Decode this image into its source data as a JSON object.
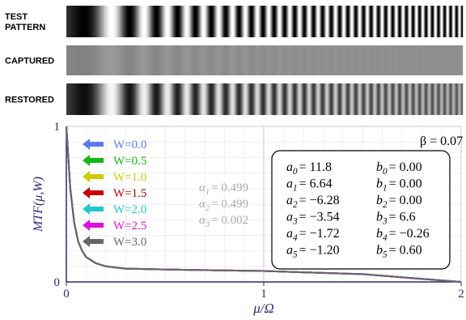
{
  "strips": [
    {
      "label": [
        "TEST",
        "PATTERN"
      ]
    },
    {
      "label": [
        "CAPTURED"
      ]
    },
    {
      "label": [
        "RESTORED"
      ]
    }
  ],
  "chart_data": {
    "type": "line",
    "ylabel": "MTF(μ,W)",
    "xlabel": "μ/Ω",
    "x": [
      0,
      0.02,
      0.04,
      0.06,
      0.08,
      0.1,
      0.15,
      0.2,
      0.3,
      0.5,
      0.75,
      1,
      1.25,
      1.5,
      1.75,
      1.9,
      2
    ],
    "series": [
      {
        "name": "W=0.0",
        "color": "#5b7cf0",
        "values": [
          1,
          0.6,
          0.38,
          0.26,
          0.2,
          0.16,
          0.12,
          0.1,
          0.085,
          0.08,
          0.075,
          0.07,
          0.06,
          0.05,
          0.025,
          0.01,
          0
        ]
      },
      {
        "name": "W=0.5",
        "color": "#14b814",
        "values": [
          1,
          0.6,
          0.38,
          0.26,
          0.2,
          0.16,
          0.12,
          0.1,
          0.085,
          0.08,
          0.075,
          0.07,
          0.06,
          0.05,
          0.025,
          0.01,
          0
        ]
      },
      {
        "name": "W=1.0",
        "color": "#cccc00",
        "values": [
          1,
          0.6,
          0.38,
          0.26,
          0.2,
          0.16,
          0.12,
          0.1,
          0.085,
          0.08,
          0.075,
          0.07,
          0.06,
          0.05,
          0.025,
          0.01,
          0
        ]
      },
      {
        "name": "W=1.5",
        "color": "#c80000",
        "values": [
          1,
          0.6,
          0.38,
          0.26,
          0.2,
          0.16,
          0.12,
          0.1,
          0.085,
          0.08,
          0.075,
          0.07,
          0.06,
          0.05,
          0.025,
          0.01,
          0
        ]
      },
      {
        "name": "W=2.0",
        "color": "#22c8c8",
        "values": [
          1,
          0.6,
          0.38,
          0.26,
          0.2,
          0.16,
          0.12,
          0.1,
          0.085,
          0.08,
          0.075,
          0.07,
          0.06,
          0.05,
          0.025,
          0.01,
          0
        ]
      },
      {
        "name": "W=2.5",
        "color": "#dd11dd",
        "values": [
          1,
          0.6,
          0.38,
          0.26,
          0.2,
          0.16,
          0.12,
          0.1,
          0.085,
          0.08,
          0.075,
          0.07,
          0.06,
          0.05,
          0.025,
          0.01,
          0
        ]
      },
      {
        "name": "W=3.0",
        "color": "#666666",
        "values": [
          1,
          0.6,
          0.38,
          0.26,
          0.2,
          0.16,
          0.12,
          0.1,
          0.085,
          0.08,
          0.075,
          0.07,
          0.06,
          0.05,
          0.025,
          0.01,
          0
        ]
      }
    ],
    "xlim": [
      0,
      2
    ],
    "xticks": [
      0,
      1,
      2
    ],
    "ylim": [
      0,
      1
    ],
    "yticks": [
      0,
      1
    ],
    "grid": true,
    "alphas": [
      {
        "symbol": "α",
        "index": "1",
        "value": "= 0.499"
      },
      {
        "symbol": "α",
        "index": "2",
        "value": "= 0.499"
      },
      {
        "symbol": "α",
        "index": "3",
        "value": "= 0.002"
      }
    ],
    "beta": "β = 0.07",
    "coefficients": [
      [
        {
          "symbol": "a",
          "index": "0",
          "value": "=  11.8"
        },
        {
          "symbol": "b",
          "index": "0",
          "value": "=  0.00"
        }
      ],
      [
        {
          "symbol": "a",
          "index": "1",
          "value": "=  6.64"
        },
        {
          "symbol": "b",
          "index": "1",
          "value": "=  0.00"
        }
      ],
      [
        {
          "symbol": "a",
          "index": "2",
          "value": "= −6.28"
        },
        {
          "symbol": "b",
          "index": "2",
          "value": "=  0.00"
        }
      ],
      [
        {
          "symbol": "a",
          "index": "3",
          "value": "= −3.54"
        },
        {
          "symbol": "b",
          "index": "3",
          "value": "=  6.6"
        }
      ],
      [
        {
          "symbol": "a",
          "index": "4",
          "value": "= −1.72"
        },
        {
          "symbol": "b",
          "index": "4",
          "value": "= −0.26"
        }
      ],
      [
        {
          "symbol": "a",
          "index": "5",
          "value": "= −1.20"
        },
        {
          "symbol": "b",
          "index": "5",
          "value": "=  0.60"
        }
      ]
    ]
  }
}
